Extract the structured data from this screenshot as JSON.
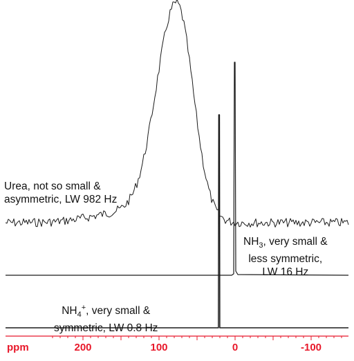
{
  "chart_data": {
    "type": "line",
    "xlabel": "ppm",
    "xlim": [
      240,
      -135
    ],
    "x_ticks": [
      "200",
      "100",
      "0",
      "-100"
    ],
    "series": [
      {
        "label_lines": [
          "Urea, not so small &",
          "asymmetric, LW 982 Hz"
        ],
        "peak_position": 77,
        "peak_note": "broad asymmetric peak with noisy baseline"
      },
      {
        "label_lines": [
          "NH3, very small &",
          "less symmetric,",
          "LW 16 Hz"
        ],
        "peak_position": 0
      },
      {
        "label_lines": [
          "NH4+, very small &",
          "symmetric, LW 0.8 Hz"
        ],
        "peak_position": 21
      }
    ],
    "colors": {
      "axis": "#e8182a",
      "trace": "#1a1a1a"
    }
  }
}
